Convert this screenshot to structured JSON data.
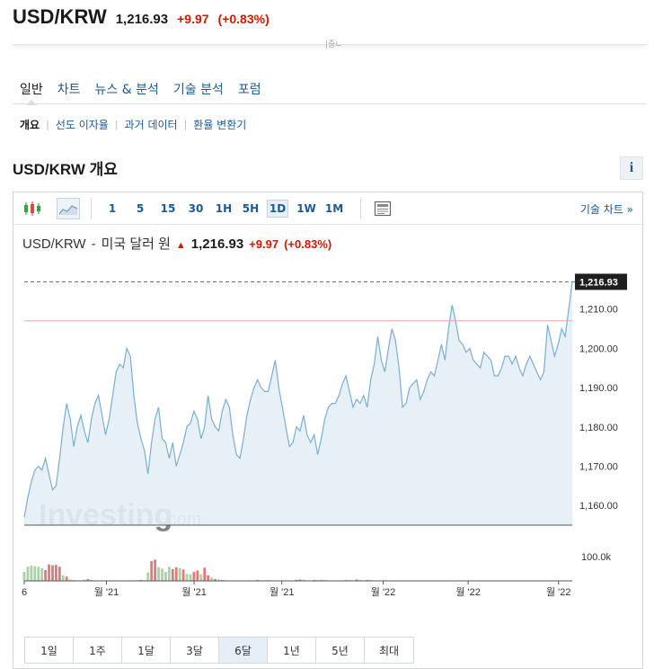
{
  "header": {
    "pair": "USD/KRW",
    "price": "1,216.93",
    "change": "+9.97",
    "change_pct": "(+0.83%)",
    "peek_tick": "|중∟"
  },
  "tabs": [
    "일반",
    "차트",
    "뉴스 & 분석",
    "기술 분석",
    "포럼"
  ],
  "subtabs": [
    "개요",
    "선도 이자율",
    "과거 데이터",
    "환율 변환기"
  ],
  "section_title": "USD/KRW 개요",
  "info_label": "i",
  "toolbar": {
    "intervals": [
      "1",
      "5",
      "15",
      "30",
      "1H",
      "5H",
      "1D",
      "1W",
      "1M"
    ],
    "active_interval": "1D",
    "tech_chart_label": "기술 차트 »"
  },
  "legend": {
    "pair": "USD/KRW",
    "dash": "-",
    "name": "미국 달러 원",
    "price": "1,216.93",
    "change": "+9.97",
    "change_pct": "(+0.83%)"
  },
  "watermark": {
    "brand": "Investing",
    "suffix": ".com"
  },
  "ranges": [
    "1일",
    "1주",
    "1달",
    "3달",
    "6달",
    "1년",
    "5년",
    "최대"
  ],
  "active_range": "6달",
  "colors": {
    "accent": "#1a5a96",
    "down": "#d91400",
    "line": "#7aaed1",
    "area": "#e6eef6",
    "vol_up": "#a9d3a5",
    "vol_down": "#e07a7a"
  },
  "chart_data": {
    "type": "area",
    "ylim": [
      1155,
      1220
    ],
    "yticks": [
      "1,160.00",
      "1,170.00",
      "1,180.00",
      "1,190.00",
      "1,200.00",
      "1,210.00"
    ],
    "ytick_values": [
      1160,
      1170,
      1180,
      1190,
      1200,
      1210
    ],
    "xticks": [
      "6",
      "월 '21",
      "월 '21",
      "월 '21",
      "월 '22",
      "월 '22",
      "월 '22"
    ],
    "last_price_label": "1,216.93",
    "last_price": 1216.93,
    "prev_close": 1207,
    "volume_label": "100.0k",
    "volume_ylim": [
      0,
      160
    ],
    "values": [
      1157,
      1162,
      1166,
      1169,
      1170,
      1169,
      1172,
      1168,
      1164,
      1165,
      1172,
      1180,
      1186,
      1182,
      1175,
      1180,
      1183,
      1179,
      1176,
      1182,
      1186,
      1188,
      1183,
      1178,
      1182,
      1188,
      1194,
      1196,
      1195,
      1200,
      1198,
      1188,
      1181,
      1177,
      1174,
      1168,
      1176,
      1182,
      1185,
      1177,
      1176,
      1172,
      1176,
      1170,
      1173,
      1176,
      1180,
      1181,
      1184,
      1182,
      1177,
      1180,
      1188,
      1182,
      1180,
      1179,
      1184,
      1187,
      1185,
      1178,
      1173,
      1172,
      1177,
      1183,
      1187,
      1190,
      1192,
      1190,
      1189,
      1189,
      1193,
      1197,
      1190,
      1185,
      1180,
      1175,
      1176,
      1180,
      1179,
      1183,
      1178,
      1176,
      1178,
      1173,
      1177,
      1182,
      1185,
      1186,
      1186,
      1188,
      1191,
      1193,
      1189,
      1185,
      1187,
      1186,
      1188,
      1185,
      1192,
      1196,
      1203,
      1197,
      1194,
      1200,
      1205,
      1202,
      1195,
      1185,
      1186,
      1190,
      1191,
      1192,
      1187,
      1189,
      1192,
      1194,
      1193,
      1197,
      1201,
      1197,
      1205,
      1211,
      1207,
      1202,
      1201,
      1199,
      1200,
      1197,
      1196,
      1195,
      1199,
      1198,
      1197,
      1193,
      1193,
      1195,
      1198,
      1198,
      1196,
      1198,
      1195,
      1193,
      1196,
      1198,
      1196,
      1194,
      1192,
      1194,
      1206,
      1202,
      1198,
      1201,
      1205,
      1203,
      1210,
      1217
    ],
    "volume": [
      [
        38,
        0
      ],
      [
        60,
        0
      ],
      [
        64,
        0
      ],
      [
        62,
        0
      ],
      [
        60,
        0
      ],
      [
        54,
        0
      ],
      [
        46,
        1
      ],
      [
        70,
        1
      ],
      [
        66,
        1
      ],
      [
        68,
        1
      ],
      [
        60,
        1
      ],
      [
        24,
        0
      ],
      [
        18,
        1
      ],
      [
        6,
        0
      ],
      [
        3,
        1
      ],
      [
        2,
        0
      ],
      [
        2,
        1
      ],
      [
        5,
        0
      ],
      [
        8,
        1
      ],
      [
        4,
        0
      ],
      [
        2,
        1
      ],
      [
        1,
        0
      ],
      [
        1,
        1
      ],
      [
        2,
        0
      ],
      [
        2,
        1
      ],
      [
        1,
        1
      ],
      [
        1,
        0
      ],
      [
        1,
        1
      ],
      [
        0,
        0
      ],
      [
        1,
        0
      ],
      [
        1,
        1
      ],
      [
        2,
        0
      ],
      [
        3,
        0
      ],
      [
        4,
        1
      ],
      [
        3,
        0
      ],
      [
        36,
        0
      ],
      [
        84,
        1
      ],
      [
        90,
        1
      ],
      [
        58,
        0
      ],
      [
        52,
        0
      ],
      [
        38,
        0
      ],
      [
        60,
        0
      ],
      [
        50,
        1
      ],
      [
        58,
        1
      ],
      [
        54,
        0
      ],
      [
        48,
        1
      ],
      [
        30,
        0
      ],
      [
        28,
        0
      ],
      [
        38,
        1
      ],
      [
        44,
        1
      ],
      [
        28,
        0
      ],
      [
        56,
        1
      ],
      [
        24,
        1
      ],
      [
        14,
        0
      ],
      [
        8,
        1
      ],
      [
        6,
        0
      ],
      [
        4,
        1
      ],
      [
        2,
        0
      ],
      [
        1,
        1
      ],
      [
        1,
        0
      ],
      [
        1,
        1
      ],
      [
        2,
        0
      ],
      [
        1,
        0
      ],
      [
        2,
        1
      ],
      [
        1,
        0
      ],
      [
        2,
        1
      ],
      [
        4,
        1
      ],
      [
        1,
        0
      ],
      [
        2,
        0
      ],
      [
        3,
        1
      ],
      [
        1,
        1
      ],
      [
        1,
        0
      ],
      [
        2,
        0
      ],
      [
        1,
        1
      ],
      [
        2,
        1
      ],
      [
        1,
        0
      ],
      [
        2,
        0
      ],
      [
        4,
        1
      ],
      [
        6,
        1
      ],
      [
        5,
        0
      ],
      [
        1,
        1
      ],
      [
        2,
        0
      ],
      [
        4,
        1
      ],
      [
        3,
        1
      ],
      [
        5,
        0
      ],
      [
        3,
        1
      ],
      [
        2,
        0
      ],
      [
        2,
        0
      ],
      [
        1,
        1
      ],
      [
        1,
        0
      ],
      [
        2,
        1
      ],
      [
        5,
        0
      ],
      [
        3,
        1
      ],
      [
        2,
        0
      ],
      [
        6,
        1
      ],
      [
        3,
        1
      ],
      [
        2,
        0
      ],
      [
        4,
        1
      ],
      [
        3,
        1
      ],
      [
        1,
        0
      ],
      [
        1,
        1
      ],
      [
        1,
        0
      ],
      [
        0,
        0
      ],
      [
        0,
        1
      ],
      [
        0,
        0
      ],
      [
        0,
        1
      ],
      [
        0,
        0
      ],
      [
        0,
        0
      ],
      [
        0,
        1
      ],
      [
        0,
        0
      ],
      [
        0,
        1
      ],
      [
        0,
        0
      ],
      [
        0,
        0
      ],
      [
        0,
        1
      ],
      [
        0,
        0
      ],
      [
        0,
        1
      ],
      [
        0,
        0
      ],
      [
        0,
        0
      ],
      [
        0,
        1
      ],
      [
        0,
        0
      ],
      [
        0,
        1
      ],
      [
        0,
        0
      ],
      [
        0,
        0
      ],
      [
        0,
        1
      ],
      [
        0,
        0
      ],
      [
        0,
        1
      ],
      [
        0,
        0
      ],
      [
        0,
        0
      ],
      [
        0,
        1
      ],
      [
        0,
        0
      ],
      [
        0,
        1
      ],
      [
        0,
        0
      ],
      [
        0,
        0
      ],
      [
        0,
        1
      ],
      [
        0,
        0
      ],
      [
        0,
        1
      ],
      [
        0,
        0
      ],
      [
        0,
        0
      ],
      [
        0,
        1
      ],
      [
        0,
        0
      ],
      [
        0,
        1
      ],
      [
        0,
        0
      ],
      [
        0,
        0
      ],
      [
        0,
        1
      ],
      [
        0,
        0
      ],
      [
        0,
        1
      ],
      [
        0,
        0
      ],
      [
        0,
        0
      ],
      [
        0,
        1
      ],
      [
        0,
        0
      ],
      [
        0,
        1
      ],
      [
        0,
        0
      ],
      [
        0,
        0
      ],
      [
        0,
        1
      ],
      [
        0,
        0
      ],
      [
        0,
        1
      ],
      [
        0,
        0
      ],
      [
        0,
        0
      ],
      [
        0,
        1
      ],
      [
        0,
        0
      ],
      [
        0,
        1
      ]
    ]
  }
}
